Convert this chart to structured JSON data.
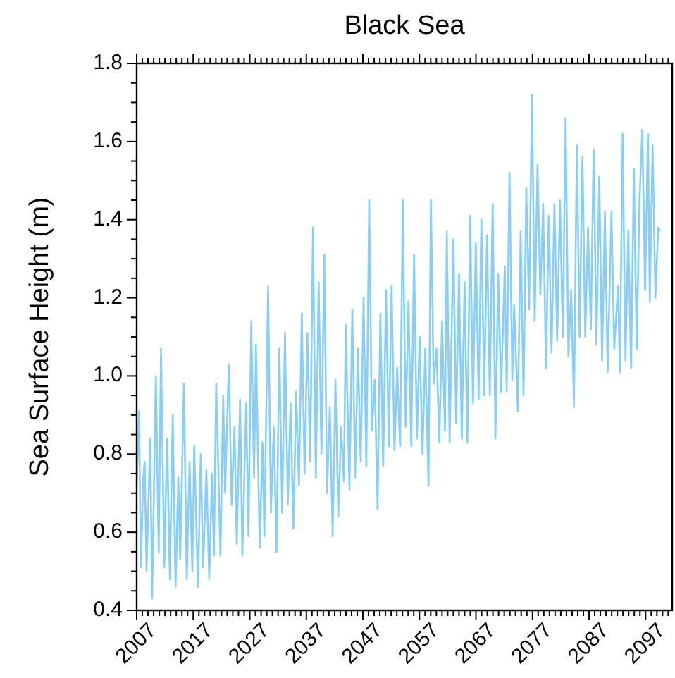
{
  "chart_data": {
    "type": "line",
    "title": "Black Sea",
    "ylabel": "Sea Surface Height (m)",
    "grid": false,
    "marker": "none",
    "line_style": "solid",
    "xlim": [
      2007,
      2101.7
    ],
    "ylim": [
      0.4,
      1.8
    ],
    "xticks": [
      2007,
      {
        "value": 2008,
        "label": null
      },
      {
        "value": 2009,
        "label": null
      },
      {
        "value": 2010,
        "label": null
      },
      {
        "value": 2011,
        "label": null
      },
      {
        "value": 2012,
        "label": null
      },
      {
        "value": 2013,
        "label": null
      },
      {
        "value": 2014,
        "label": null
      },
      {
        "value": 2015,
        "label": null
      },
      {
        "value": 2016,
        "label": null
      },
      2017,
      {
        "value": 2018,
        "label": null
      },
      {
        "value": 2019,
        "label": null
      },
      {
        "value": 2020,
        "label": null
      },
      {
        "value": 2021,
        "label": null
      },
      {
        "value": 2022,
        "label": null
      },
      {
        "value": 2023,
        "label": null
      },
      {
        "value": 2024,
        "label": null
      },
      {
        "value": 2025,
        "label": null
      },
      {
        "value": 2026,
        "label": null
      },
      2027,
      {
        "value": 2028,
        "label": null
      },
      {
        "value": 2029,
        "label": null
      },
      {
        "value": 2030,
        "label": null
      },
      {
        "value": 2031,
        "label": null
      },
      {
        "value": 2032,
        "label": null
      },
      {
        "value": 2033,
        "label": null
      },
      {
        "value": 2034,
        "label": null
      },
      {
        "value": 2035,
        "label": null
      },
      {
        "value": 2036,
        "label": null
      },
      2037,
      {
        "value": 2038,
        "label": null
      },
      {
        "value": 2039,
        "label": null
      },
      {
        "value": 2040,
        "label": null
      },
      {
        "value": 2041,
        "label": null
      },
      {
        "value": 2042,
        "label": null
      },
      {
        "value": 2043,
        "label": null
      },
      {
        "value": 2044,
        "label": null
      },
      {
        "value": 2045,
        "label": null
      },
      {
        "value": 2046,
        "label": null
      },
      2047,
      {
        "value": 2048,
        "label": null
      },
      {
        "value": 2049,
        "label": null
      },
      {
        "value": 2050,
        "label": null
      },
      {
        "value": 2051,
        "label": null
      },
      {
        "value": 2052,
        "label": null
      },
      {
        "value": 2053,
        "label": null
      },
      {
        "value": 2054,
        "label": null
      },
      {
        "value": 2055,
        "label": null
      },
      {
        "value": 2056,
        "label": null
      },
      2057,
      {
        "value": 2058,
        "label": null
      },
      {
        "value": 2059,
        "label": null
      },
      {
        "value": 2060,
        "label": null
      },
      {
        "value": 2061,
        "label": null
      },
      {
        "value": 2062,
        "label": null
      },
      {
        "value": 2063,
        "label": null
      },
      {
        "value": 2064,
        "label": null
      },
      {
        "value": 2065,
        "label": null
      },
      {
        "value": 2066,
        "label": null
      },
      2067,
      {
        "value": 2068,
        "label": null
      },
      {
        "value": 2069,
        "label": null
      },
      {
        "value": 2070,
        "label": null
      },
      {
        "value": 2071,
        "label": null
      },
      {
        "value": 2072,
        "label": null
      },
      {
        "value": 2073,
        "label": null
      },
      {
        "value": 2074,
        "label": null
      },
      {
        "value": 2075,
        "label": null
      },
      {
        "value": 2076,
        "label": null
      },
      2077,
      {
        "value": 2078,
        "label": null
      },
      {
        "value": 2079,
        "label": null
      },
      {
        "value": 2080,
        "label": null
      },
      {
        "value": 2081,
        "label": null
      },
      {
        "value": 2082,
        "label": null
      },
      {
        "value": 2083,
        "label": null
      },
      {
        "value": 2084,
        "label": null
      },
      {
        "value": 2085,
        "label": null
      },
      {
        "value": 2086,
        "label": null
      },
      2087,
      {
        "value": 2088,
        "label": null
      },
      {
        "value": 2089,
        "label": null
      },
      {
        "value": 2090,
        "label": null
      },
      {
        "value": 2091,
        "label": null
      },
      {
        "value": 2092,
        "label": null
      },
      {
        "value": 2093,
        "label": null
      },
      {
        "value": 2094,
        "label": null
      },
      {
        "value": 2095,
        "label": null
      },
      {
        "value": 2096,
        "label": null
      },
      2097,
      {
        "value": 2098,
        "label": null
      },
      {
        "value": 2099,
        "label": null
      },
      {
        "value": 2100,
        "label": null
      },
      {
        "value": 2101,
        "label": null
      }
    ],
    "yticks": [
      {
        "value": 0.4,
        "label": "0.4"
      },
      {
        "value": 0.45,
        "label": null
      },
      {
        "value": 0.5,
        "label": null
      },
      {
        "value": 0.55,
        "label": null
      },
      {
        "value": 0.6,
        "label": "0.6"
      },
      {
        "value": 0.65,
        "label": null
      },
      {
        "value": 0.7,
        "label": null
      },
      {
        "value": 0.75,
        "label": null
      },
      {
        "value": 0.8,
        "label": "0.8"
      },
      {
        "value": 0.85,
        "label": null
      },
      {
        "value": 0.9,
        "label": null
      },
      {
        "value": 0.95,
        "label": null
      },
      {
        "value": 1,
        "label": "1.0"
      },
      {
        "value": 1.05,
        "label": null
      },
      {
        "value": 1.1,
        "label": null
      },
      {
        "value": 1.15,
        "label": null
      },
      {
        "value": 1.2,
        "label": "1.2"
      },
      {
        "value": 1.25,
        "label": null
      },
      {
        "value": 1.3,
        "label": null
      },
      {
        "value": 1.35,
        "label": null
      },
      {
        "value": 1.4,
        "label": "1.4"
      },
      {
        "value": 1.45,
        "label": null
      },
      {
        "value": 1.5,
        "label": null
      },
      {
        "value": 1.55,
        "label": null
      },
      {
        "value": 1.6,
        "label": "1.6"
      },
      {
        "value": 1.65,
        "label": null
      },
      {
        "value": 1.7,
        "label": null
      },
      {
        "value": 1.75,
        "label": null
      },
      {
        "value": 1.8,
        "label": "1.8"
      }
    ],
    "series": [
      {
        "color": "#87cefa",
        "x": [
          2007.0,
          2007.41,
          2007.74,
          2008.16,
          2008.41,
          2008.74,
          2009.4,
          2009.73,
          2010.39,
          2010.89,
          2011.3,
          2011.88,
          2012.38,
          2012.87,
          2013.37,
          2013.87,
          2014.36,
          2014.69,
          2015.35,
          2015.85,
          2016.35,
          2016.84,
          2017.17,
          2017.84,
          2018.33,
          2018.75,
          2019.32,
          2019.82,
          2020.32,
          2020.65,
          2021.06,
          2021.81,
          2022.3,
          2022.63,
          2023.29,
          2023.79,
          2024.29,
          2024.7,
          2025.28,
          2025.69,
          2026.36,
          2026.77,
          2027.26,
          2027.76,
          2028.09,
          2028.75,
          2029.25,
          2029.58,
          2030.24,
          2030.74,
          2031.24,
          2031.73,
          2032.23,
          2032.72,
          2033.22,
          2033.72,
          2034.21,
          2034.71,
          2035.21,
          2035.7,
          2036.2,
          2036.69,
          2037.19,
          2037.69,
          2038.18,
          2038.68,
          2039.18,
          2039.67,
          2040.17,
          2040.66,
          2041.16,
          2041.66,
          2042.15,
          2042.65,
          2043.15,
          2043.64,
          2043.97,
          2044.63,
          2045.13,
          2045.63,
          2046.12,
          2046.62,
          2047.12,
          2047.61,
          2048.11,
          2048.6,
          2049.1,
          2049.6,
          2050.09,
          2050.59,
          2051.09,
          2051.58,
          2052.08,
          2052.58,
          2053.07,
          2053.57,
          2054.06,
          2054.56,
          2055.06,
          2055.55,
          2056.05,
          2056.55,
          2057.04,
          2057.54,
          2058.03,
          2058.61,
          2059.03,
          2059.52,
          2060.02,
          2060.52,
          2061.01,
          2061.51,
          2061.84,
          2062.34,
          2063.0,
          2063.49,
          2063.99,
          2064.49,
          2064.98,
          2065.48,
          2065.98,
          2066.47,
          2066.97,
          2067.47,
          2067.96,
          2068.46,
          2068.96,
          2069.45,
          2069.95,
          2070.44,
          2070.94,
          2071.44,
          2072.1,
          2072.43,
          2072.93,
          2073.42,
          2073.75,
          2074.41,
          2074.91,
          2075.41,
          2075.9,
          2076.4,
          2076.9,
          2077.39,
          2077.89,
          2078.38,
          2078.88,
          2079.38,
          2079.87,
          2080.37,
          2080.87,
          2081.36,
          2081.86,
          2082.36,
          2082.85,
          2083.35,
          2083.84,
          2084.34,
          2084.84,
          2085.33,
          2085.83,
          2086.33,
          2086.82,
          2087.32,
          2087.81,
          2088.31,
          2088.81,
          2089.3,
          2089.8,
          2090.29,
          2090.96,
          2091.45,
          2092.11,
          2092.45,
          2092.94,
          2093.44,
          2093.94,
          2094.43,
          2094.93,
          2095.42,
          2095.92,
          2096.42,
          2096.91,
          2097.41,
          2097.74,
          2098.24,
          2098.73,
          2099.23,
          2099.56
        ],
        "values": [
          0.72,
          0.91,
          0.51,
          0.74,
          0.78,
          0.5,
          0.84,
          0.43,
          1.0,
          0.55,
          1.07,
          0.51,
          0.84,
          0.48,
          0.9,
          0.46,
          0.74,
          0.53,
          0.98,
          0.48,
          0.78,
          0.5,
          0.82,
          0.46,
          0.8,
          0.51,
          0.76,
          0.48,
          0.75,
          0.54,
          0.98,
          0.54,
          0.95,
          0.7,
          1.03,
          0.67,
          0.87,
          0.57,
          0.94,
          0.54,
          0.93,
          0.59,
          1.14,
          0.74,
          1.08,
          0.56,
          0.83,
          0.59,
          1.23,
          0.65,
          0.87,
          0.55,
          1.07,
          0.65,
          1.11,
          0.67,
          0.93,
          0.61,
          0.96,
          0.72,
          1.16,
          0.75,
          1.11,
          0.78,
          1.38,
          0.74,
          1.24,
          0.8,
          1.31,
          0.7,
          0.92,
          0.59,
          0.99,
          0.64,
          0.87,
          0.73,
          1.13,
          0.71,
          1.17,
          0.74,
          1.07,
          0.78,
          1.2,
          0.77,
          1.45,
          0.86,
          0.99,
          0.66,
          1.16,
          0.77,
          1.22,
          0.82,
          1.23,
          0.81,
          1.02,
          0.82,
          1.45,
          0.87,
          1.19,
          0.82,
          1.31,
          0.84,
          1.1,
          0.8,
          1.07,
          0.72,
          1.45,
          0.98,
          1.07,
          0.83,
          1.14,
          0.86,
          1.37,
          0.83,
          1.35,
          0.88,
          1.26,
          0.84,
          1.24,
          0.83,
          1.41,
          0.93,
          1.34,
          0.94,
          1.4,
          0.95,
          1.36,
          0.95,
          1.44,
          0.84,
          1.26,
          0.96,
          1.28,
          0.96,
          1.52,
          0.99,
          1.18,
          0.91,
          1.37,
          0.95,
          1.48,
          1.17,
          1.72,
          1.14,
          1.54,
          1.21,
          1.44,
          1.02,
          1.41,
          1.06,
          1.44,
          1.09,
          1.45,
          1.1,
          1.66,
          1.05,
          1.22,
          0.92,
          1.59,
          1.1,
          1.56,
          1.1,
          1.38,
          1.12,
          1.58,
          1.08,
          1.51,
          1.04,
          1.42,
          1.01,
          1.42,
          1.07,
          1.23,
          1.01,
          1.62,
          1.04,
          1.37,
          1.02,
          1.53,
          1.07,
          1.45,
          1.63,
          1.22,
          1.62,
          1.19,
          1.59,
          1.2,
          1.38,
          1.37
        ]
      }
    ]
  }
}
